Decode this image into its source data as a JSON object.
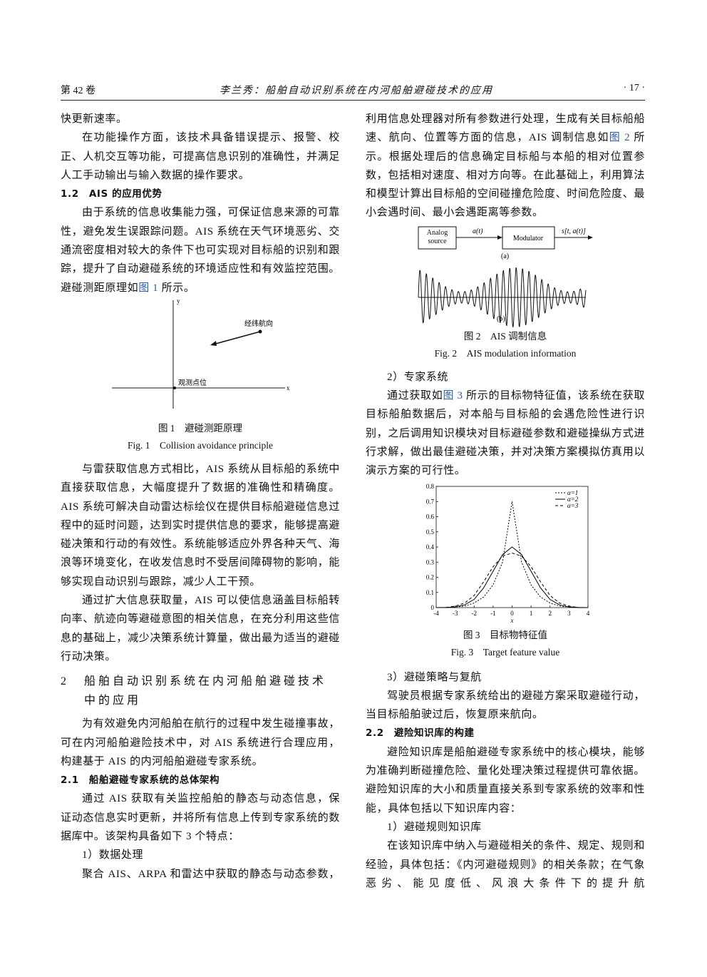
{
  "header": {
    "volume": "第 42 卷",
    "title": "李兰秀：船舶自动识别系统在内河船舶避碰技术的应用",
    "page": "· 17 ·"
  },
  "left_column": [
    "快更新速率。",
    "在功能操作方面，该技术具备错误提示、报警、校正、人机交互等功能，可提高信息识别的准确性，并满足人工手动输出与输入数据的操作要求。",
    "1.2　AIS 的应用优势",
    {
      "before": "由于系统的信息收集能力强，可保证信息来源的可靠性，避免发生误跟踪问题。AIS 系统在天气环境恶劣、交通流密度相对较大的条件下也可实现对目标船的识别和跟踪，提升了自动避碰系统的环境适应性和有效监控范围。避碰测距原理如",
      "link": "图 1",
      "after": " 所示。"
    },
    "与雷获取信息方式相比，AIS 系统从目标船的系统中直接获取信息，大幅度提升了数据的准确性和精确度。AIS 系统可解决自动雷达标绘仪在提供目标船避碰信息过程中的延时问题，达到实时提供信息的要求，能够提高避碰决策和行动的有效性。系统能够适应外界各种天气、海浪等环境变化，在收发信息时不受居间障碍物的影响，能够实现自动识别与跟踪，减少人工干预。",
    "通过扩大信息获取量，AIS 可以使信息涵盖目标船转向率、航迹向等避碰意图的相关信息，在充分利用这些信息的基础上，减少决策系统计算量，做出最为适当的避碰行动决策。",
    {
      "number": "2",
      "title": "船舶自动识别系统在内河船舶避碰技术中的应用"
    },
    "为有效避免内河船舶在航行的过程中发生碰撞事故，可在内河船舶避险技术中，对 AIS 系统进行合理应用，构建基于 AIS 的内河船舶避碰专家系统。",
    "2.1　船舶避碰专家系统的总体架构",
    "通过 AIS 获取有关监控船舶的静态与动态信息，保证动态信息实时更新，并将所有信息上传到专家系统的数据库中。该架构具备如下 3 个特点：",
    "1）数据处理",
    "聚合 AIS、ARPA 和雷达中获取的静态与动态参数，"
  ],
  "right_column": [
    {
      "before": "利用信息处理器对所有参数进行处理，生成有关目标船船速、航向、位置等方面的信息，AIS 调制信息如",
      "link": "图 2",
      "after": " 所示。根据处理后的信息确定目标船与本船的相对位置参数，包括相对速度、相对方向等。在此基础上，利用算法和模型计算出目标船的空间碰撞危险度、时间危险度、最小会遇时间、最小会遇距离等参数。"
    },
    "2）专家系统",
    {
      "before": "通过获取如",
      "link": "图 3",
      "after": " 所示的目标物特征值，该系统在获取目标船舶数据后，对本船与目标船的会遇危险性进行识别，之后调用知识模块对目标避碰参数和避碰操纵方式进行求解，做出最佳避碰决策，并对决策方案模拟仿真用以演示方案的可行性。"
    },
    "3）避碰策略与复航",
    "驾驶员根据专家系统给出的避碰方案采取避碰行动，当目标船舶驶过后，恢复原来航向。",
    "2.2　避险知识库的构建",
    "避险知识库是船舶避碰专家系统中的核心模块，能够为准确判断碰撞危险、量化处理决策过程提供可靠依据。避险知识库的大小和质量直接关系到专家系统的效率和性能，具体包括以下知识库内容：",
    "1）避碰规则知识库",
    "在该知识库中纳入与避碰相关的条件、规定、规则和经验，具体包括：《内河避碰规则》的相关条款；在气象恶劣、能见度低、风浪大条件下的提升航"
  ],
  "figures": {
    "fig1": {
      "y_label": "y",
      "x_label": "x",
      "target_label": "经纬航向",
      "origin_label": "观测点位",
      "caption_cn": "图 1　避碰测距原理",
      "caption_en": "Fig. 1　Collision avoidance principle"
    },
    "fig2": {
      "source": "Analog source",
      "signal": "a(t)",
      "modulator": "Modulator",
      "output": "s[t, a(t)]",
      "part_a": "(a)",
      "part_b": "(b)",
      "caption_cn": "图 2　AIS 调制信息",
      "caption_en": "Fig. 2　AIS modulation information"
    },
    "fig3": {
      "caption_cn": "图 3　目标物特征值",
      "caption_en": "Fig. 3　Target feature value"
    }
  },
  "chart_data": {
    "type": "line",
    "x_label": "x",
    "x": [
      -4,
      -3.5,
      -3,
      -2.5,
      -2,
      -1.5,
      -1,
      -0.5,
      0,
      0.5,
      1,
      1.5,
      2,
      2.5,
      3,
      3.5,
      4
    ],
    "series": [
      {
        "name": "α=1",
        "color": "#000",
        "style": "dotted",
        "values": [
          0,
          0,
          0.005,
          0.01,
          0.03,
          0.07,
          0.15,
          0.3,
          0.7,
          0.3,
          0.15,
          0.07,
          0.03,
          0.01,
          0.005,
          0,
          0
        ]
      },
      {
        "name": "α=2",
        "color": "#000",
        "style": "solid",
        "values": [
          0,
          0.001,
          0.004,
          0.018,
          0.054,
          0.13,
          0.24,
          0.35,
          0.4,
          0.35,
          0.24,
          0.13,
          0.054,
          0.018,
          0.004,
          0.001,
          0
        ]
      },
      {
        "name": "α=3",
        "color": "#000",
        "style": "dashed",
        "values": [
          0,
          0,
          0.01,
          0.03,
          0.08,
          0.17,
          0.27,
          0.34,
          0.36,
          0.34,
          0.27,
          0.17,
          0.08,
          0.03,
          0.01,
          0,
          0
        ]
      }
    ],
    "xlim": [
      -4,
      4
    ],
    "ylim": [
      0,
      0.8
    ],
    "xticks": [
      -4,
      -3,
      -2,
      -1,
      0,
      1,
      2,
      3,
      4
    ],
    "yticks": [
      0,
      0.1,
      0.2,
      0.3,
      0.4,
      0.5,
      0.6,
      0.7,
      0.8
    ],
    "legend": "upper right"
  }
}
